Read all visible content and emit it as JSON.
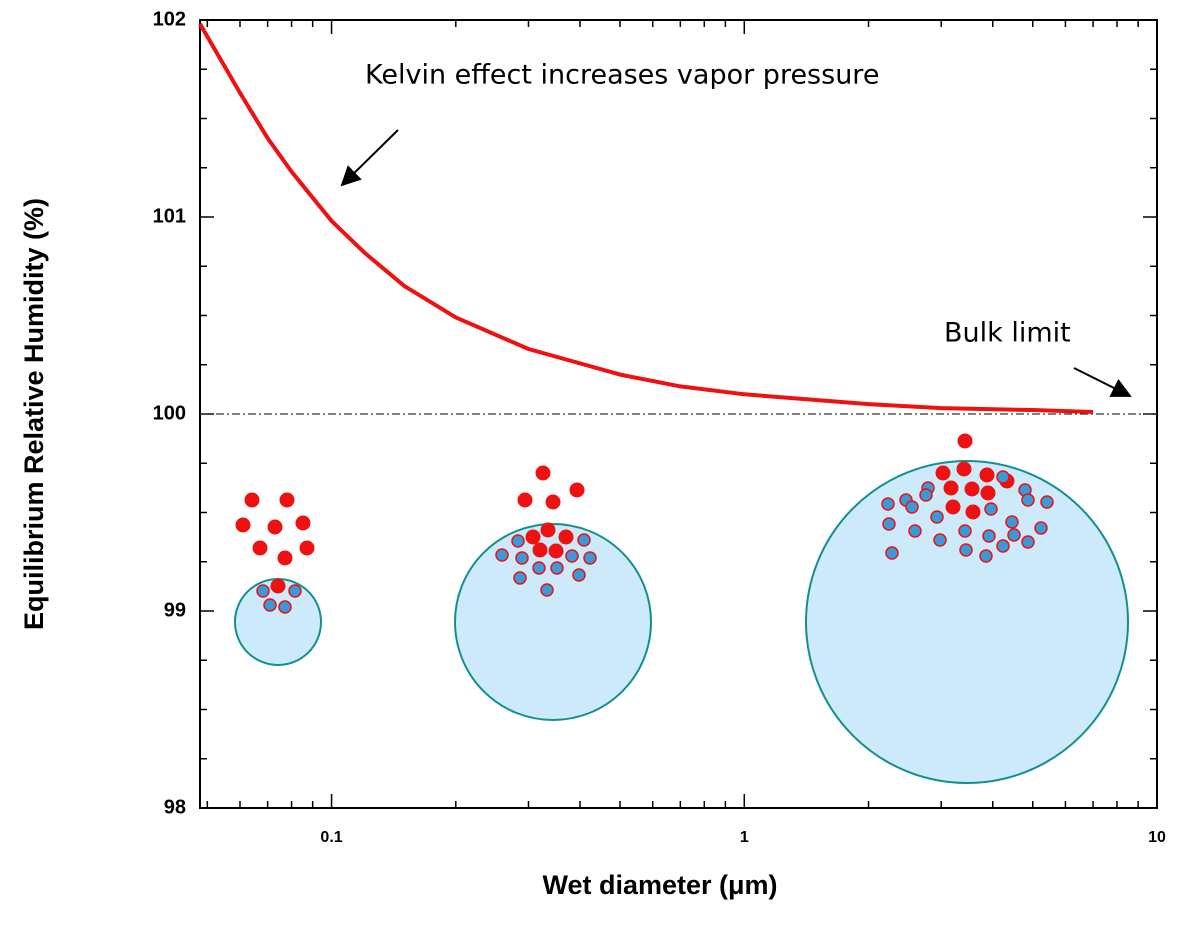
{
  "chart_data": {
    "type": "line",
    "xlabel": "Wet diameter (μm)",
    "ylabel": "Equilibrium Relative Humidity (%)",
    "xscale": "log",
    "x": [
      0.048,
      0.06,
      0.07,
      0.08,
      0.1,
      0.12,
      0.15,
      0.2,
      0.3,
      0.5,
      0.7,
      1,
      2,
      3,
      5,
      7
    ],
    "values": [
      101.98,
      101.63,
      101.4,
      101.23,
      100.98,
      100.82,
      100.65,
      100.49,
      100.33,
      100.2,
      100.14,
      100.1,
      100.05,
      100.03,
      100.02,
      100.01
    ],
    "color": "#ee1111",
    "reference_line": 100,
    "xlim": [
      0.048,
      10
    ],
    "xticks": [
      0.1,
      1,
      10
    ],
    "xminorticks": [
      0.05,
      0.06,
      0.07,
      0.08,
      0.09,
      0.2,
      0.3,
      0.4,
      0.5,
      0.6,
      0.7,
      0.8,
      0.9,
      2,
      3,
      4,
      5,
      6,
      7,
      8,
      9
    ],
    "ylim": [
      98,
      102
    ],
    "yticks": [
      98,
      99,
      100,
      101,
      102
    ],
    "yminorticks": [
      98.25,
      98.5,
      98.75,
      99.25,
      99.5,
      99.75,
      100.25,
      100.5,
      100.75,
      101.25,
      101.5,
      101.75
    ],
    "annotations": [
      "Kelvin effect increases vapor pressure",
      "Bulk limit"
    ]
  }
}
